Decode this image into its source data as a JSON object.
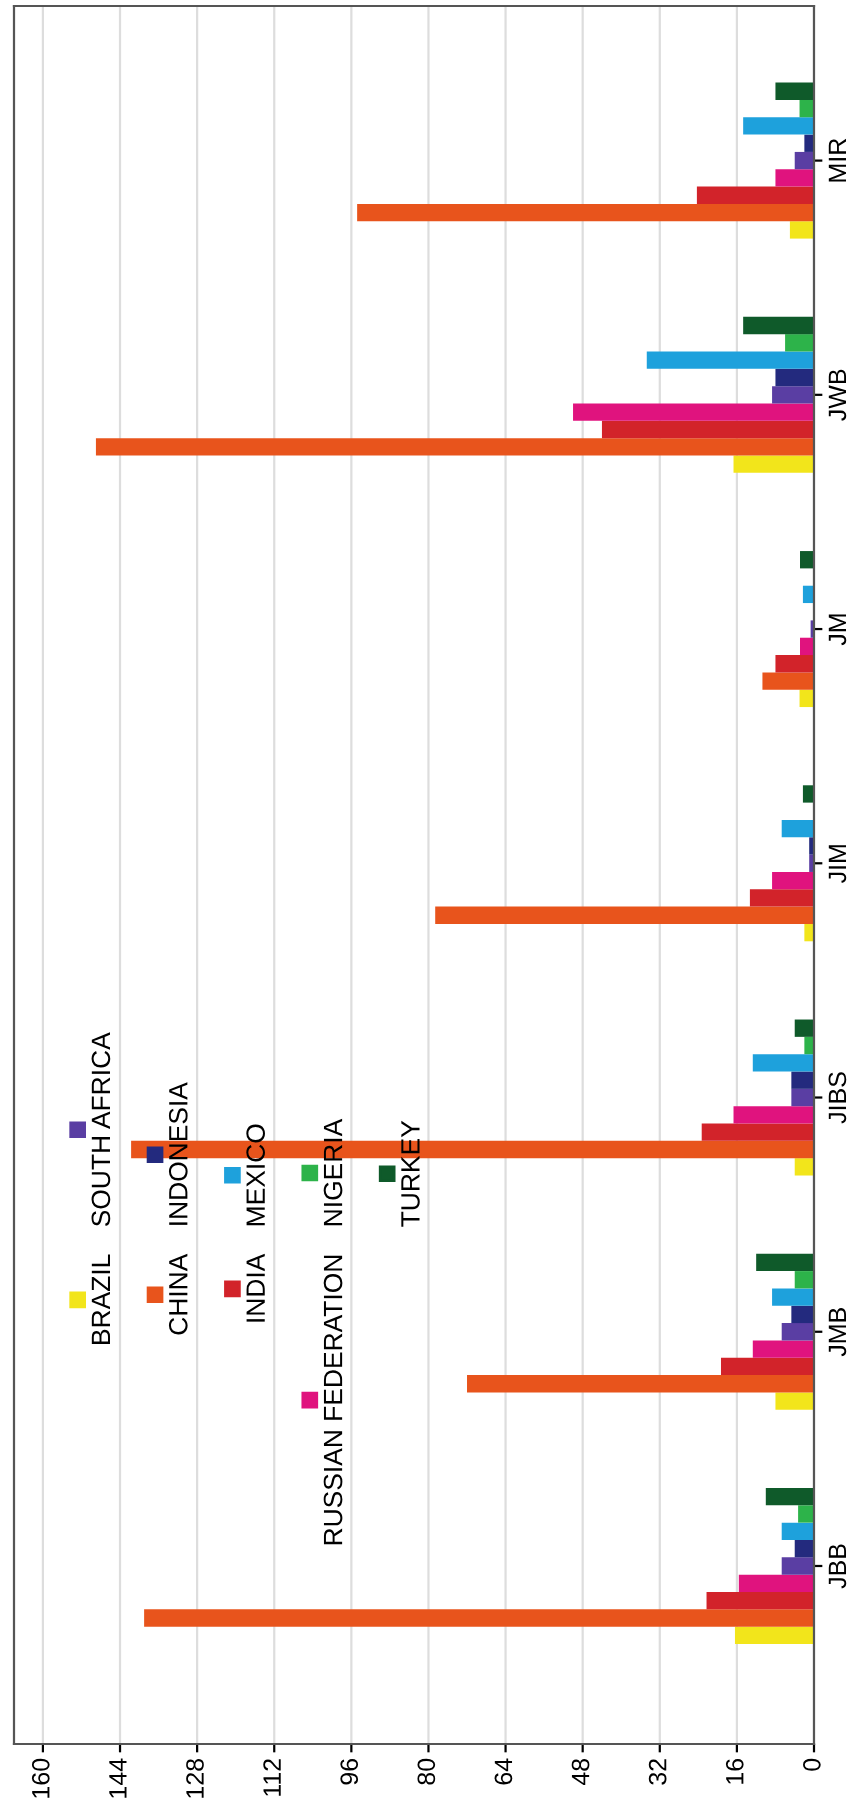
{
  "chart_data": {
    "type": "bar",
    "orientation": "horizontal",
    "categories": [
      "MIR",
      "JWB",
      "JM",
      "JIM",
      "JIBS",
      "JMB",
      "JBB"
    ],
    "series": [
      {
        "name": "BRAZIL",
        "color": "#f2e51b",
        "values": [
          5,
          16.7,
          3,
          2,
          4,
          8,
          16.4
        ]
      },
      {
        "name": "CHINA",
        "color": "#e8541c",
        "values": [
          94.8,
          149,
          10.7,
          78.6,
          141.7,
          72,
          139
        ]
      },
      {
        "name": "INDIA",
        "color": "#d2232a",
        "values": [
          24.3,
          44,
          8,
          13.3,
          23.3,
          19.3,
          22.3
        ]
      },
      {
        "name": "RUSSIAN FEDERATION",
        "color": "#e0137e",
        "values": [
          8,
          50,
          2.9,
          8.7,
          16.7,
          12.7,
          15.6
        ]
      },
      {
        "name": "SOUTH AFRICA",
        "color": "#5a3ea3",
        "values": [
          4,
          8.7,
          0.7,
          1,
          4.7,
          6.7,
          6.7
        ]
      },
      {
        "name": "INDONESIA",
        "color": "#232a7e",
        "values": [
          2,
          8,
          null,
          1,
          4.7,
          4.7,
          4
        ]
      },
      {
        "name": "MEXICO",
        "color": "#1ea1dc",
        "values": [
          14.7,
          34.7,
          2.3,
          6.7,
          12.7,
          8.7,
          6.7
        ]
      },
      {
        "name": "NIGERIA",
        "color": "#2db34a",
        "values": [
          3,
          6,
          null,
          null,
          2,
          4,
          3.3
        ]
      },
      {
        "name": "TURKEY",
        "color": "#0f5a2a",
        "values": [
          8,
          14.7,
          2.9,
          2.3,
          4,
          12,
          10
        ]
      }
    ],
    "xlim": [
      166,
      0
    ],
    "xticks": [
      0,
      16,
      32,
      48,
      64,
      80,
      96,
      112,
      128,
      144,
      160
    ],
    "grid": "x",
    "legend": "left"
  }
}
